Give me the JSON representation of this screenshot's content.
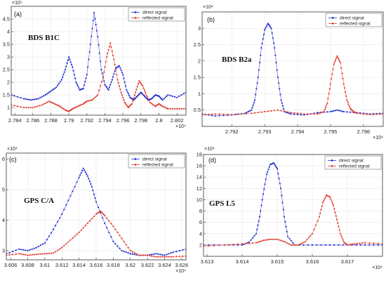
{
  "chart_data": [
    {
      "type": "line",
      "panel_label": "(a)",
      "system_label": "BDS B1C",
      "x_exponent": "×10⁴",
      "y_exponent": "×10⁵",
      "xlim": [
        27836,
        28030
      ],
      "ylim": [
        0.7,
        5.0
      ],
      "xticks": [
        27840,
        27860,
        27880,
        27900,
        27920,
        27940,
        27960,
        27980,
        28000,
        28020
      ],
      "xtick_labels": [
        "2.784",
        "2.786",
        "2.788",
        "2.79",
        "2.792",
        "2.794",
        "2.796",
        "2.798",
        "2.8",
        "2.802"
      ],
      "yticks": [
        1,
        1.5,
        2,
        2.5,
        3,
        3.5,
        4,
        4.5
      ],
      "ytick_labels": [
        "1",
        "1.5",
        "2",
        "2.5",
        "3",
        "3.5",
        "4",
        "4.5"
      ],
      "legend": [
        "direct signal",
        "reflected signal"
      ],
      "series": [
        {
          "name": "direct signal",
          "color": "#1f2fd0",
          "x": [
            27836,
            27850,
            27858,
            27866,
            27874,
            27880,
            27886,
            27892,
            27896,
            27900,
            27904,
            27908,
            27912,
            27916,
            27920,
            27924,
            27928,
            27932,
            27936,
            27940,
            27944,
            27948,
            27952,
            27956,
            27960,
            27964,
            27968,
            27972,
            27976,
            27980,
            27984,
            27988,
            27992,
            27996,
            28000,
            28004,
            28010,
            28020,
            28030
          ],
          "y": [
            1.5,
            1.35,
            1.3,
            1.35,
            1.5,
            1.65,
            1.8,
            2.1,
            2.5,
            3.0,
            2.6,
            2.0,
            1.7,
            1.75,
            2.3,
            3.5,
            4.75,
            3.8,
            2.5,
            1.9,
            1.7,
            2.1,
            2.55,
            2.65,
            2.3,
            1.7,
            1.4,
            1.3,
            1.45,
            1.6,
            1.45,
            1.3,
            1.35,
            1.5,
            1.45,
            1.3,
            1.5,
            1.4,
            1.6
          ]
        },
        {
          "name": "reflected signal",
          "color": "#e03c31",
          "x": [
            27836,
            27850,
            27860,
            27870,
            27878,
            27884,
            27890,
            27896,
            27900,
            27904,
            27910,
            27916,
            27920,
            27926,
            27932,
            27938,
            27942,
            27946,
            27950,
            27954,
            27958,
            27962,
            27966,
            27970,
            27974,
            27978,
            27982,
            27986,
            27990,
            27996,
            28000,
            28004,
            28010,
            28020,
            28030
          ],
          "y": [
            1.1,
            1.0,
            1.0,
            1.1,
            1.25,
            1.15,
            1.05,
            0.9,
            0.85,
            0.95,
            1.05,
            1.15,
            1.25,
            1.3,
            1.5,
            2.2,
            3.0,
            3.55,
            2.9,
            2.1,
            1.6,
            1.2,
            1.0,
            1.15,
            1.6,
            2.05,
            1.85,
            1.5,
            1.2,
            1.05,
            1.15,
            1.05,
            0.95,
            0.95,
            0.95
          ]
        }
      ]
    },
    {
      "type": "line",
      "panel_label": "(b)",
      "system_label": "BDS B2a",
      "x_exponent": "×10⁴",
      "y_exponent": "×10⁴",
      "xlim": [
        27911,
        27966
      ],
      "ylim": [
        0,
        3.5
      ],
      "xticks": [
        27920,
        27930,
        27940,
        27950,
        27960
      ],
      "xtick_labels": [
        "2.792",
        "2.793",
        "2.794",
        "2.795",
        "2.796"
      ],
      "yticks": [
        0.5,
        1,
        1.5,
        2,
        2.5,
        3
      ],
      "ytick_labels": [
        "0.5",
        "1",
        "1.5",
        "2",
        "2.5",
        "3"
      ],
      "legend": [
        "direct signal",
        "reflected signal"
      ],
      "series": [
        {
          "name": "direct signal",
          "color": "#1f2fd0",
          "x": [
            27911,
            27915,
            27920,
            27924,
            27926,
            27927,
            27928,
            27929,
            27930,
            27931,
            27932,
            27933,
            27934,
            27935,
            27936,
            27938,
            27942,
            27946,
            27950,
            27952,
            27954,
            27958,
            27962,
            27966
          ],
          "y": [
            0.38,
            0.32,
            0.35,
            0.4,
            0.5,
            0.8,
            1.5,
            2.4,
            2.95,
            3.15,
            3.0,
            2.4,
            1.5,
            0.8,
            0.45,
            0.38,
            0.35,
            0.42,
            0.45,
            0.5,
            0.45,
            0.42,
            0.38,
            0.4
          ]
        },
        {
          "name": "reflected signal",
          "color": "#e03c31",
          "x": [
            27911,
            27915,
            27920,
            27926,
            27930,
            27934,
            27938,
            27942,
            27946,
            27948,
            27949,
            27950,
            27951,
            27952,
            27953,
            27954,
            27955,
            27956,
            27957,
            27958,
            27962,
            27966
          ],
          "y": [
            0.35,
            0.38,
            0.36,
            0.4,
            0.45,
            0.5,
            0.42,
            0.38,
            0.38,
            0.45,
            0.7,
            1.3,
            1.9,
            2.15,
            1.95,
            1.3,
            0.8,
            0.55,
            0.45,
            0.4,
            0.36,
            0.38
          ]
        }
      ]
    },
    {
      "type": "line",
      "panel_label": "(c)",
      "system_label": "GPS C/A",
      "x_exponent": "×10⁴",
      "y_exponent": "×10⁴",
      "xlim": [
        36055,
        36265
      ],
      "ylim": [
        2.7,
        6.2
      ],
      "xticks": [
        36060,
        36080,
        36100,
        36120,
        36140,
        36160,
        36180,
        36200,
        36220,
        36240,
        36260
      ],
      "xtick_labels": [
        "3.606",
        "3.608",
        "3.61",
        "3.612",
        "3.614",
        "3.616",
        "3.618",
        "3.62",
        "3.622",
        "3.624",
        "3.626"
      ],
      "yticks": [
        3,
        4,
        5,
        6
      ],
      "ytick_labels": [
        "3",
        "4",
        "5",
        "6"
      ],
      "legend": [
        "direct signal",
        "reflected signal"
      ],
      "series": [
        {
          "name": "direct signal",
          "color": "#1f2fd0",
          "x": [
            36055,
            36070,
            36080,
            36090,
            36100,
            36110,
            36120,
            36130,
            36140,
            36145,
            36150,
            36155,
            36160,
            36170,
            36180,
            36190,
            36200,
            36210,
            36220,
            36230,
            36240,
            36250,
            36265
          ],
          "y": [
            2.9,
            3.05,
            3.0,
            3.1,
            3.25,
            3.7,
            4.2,
            4.8,
            5.4,
            5.7,
            5.45,
            5.1,
            4.6,
            3.9,
            3.3,
            3.0,
            2.9,
            2.85,
            2.85,
            2.9,
            2.85,
            2.95,
            3.05
          ]
        },
        {
          "name": "reflected signal",
          "color": "#e03c31",
          "x": [
            36055,
            36070,
            36080,
            36090,
            36100,
            36110,
            36120,
            36130,
            36140,
            36150,
            36160,
            36165,
            36170,
            36180,
            36190,
            36200,
            36210,
            36220,
            36230,
            36240,
            36250,
            36265
          ],
          "y": [
            2.85,
            2.9,
            2.85,
            2.88,
            2.9,
            2.92,
            3.1,
            3.35,
            3.6,
            3.9,
            4.2,
            4.3,
            4.15,
            3.8,
            3.4,
            3.0,
            2.85,
            2.85,
            2.8,
            2.8,
            2.8,
            2.82
          ]
        }
      ]
    },
    {
      "type": "line",
      "panel_label": "(d)",
      "system_label": "GPS L5",
      "x_exponent": "×10⁴",
      "y_exponent": "×10⁴",
      "xlim": [
        36129,
        36180
      ],
      "ylim": [
        0,
        18
      ],
      "xticks": [
        36130,
        36140,
        36150,
        36160,
        36170
      ],
      "xtick_labels": [
        "3.613",
        "3.614",
        "3.615",
        "3.616",
        "3.617"
      ],
      "yticks": [
        2,
        4,
        6,
        8,
        10,
        12,
        14,
        16,
        18
      ],
      "ytick_labels": [
        "2",
        "4",
        "6",
        "8",
        "10",
        "12",
        "14",
        "16",
        "18"
      ],
      "legend": [
        "direct signal",
        "reflected signal"
      ],
      "series": [
        {
          "name": "direct signal",
          "color": "#1f2fd0",
          "x": [
            36129,
            36135,
            36140,
            36142,
            36144,
            36145,
            36146,
            36147,
            36148,
            36149,
            36150,
            36151,
            36152,
            36153,
            36155,
            36160,
            36165,
            36170,
            36175,
            36180
          ],
          "y": [
            2,
            2,
            2,
            2.5,
            4,
            7,
            11,
            14.5,
            16.2,
            16.5,
            15.5,
            12,
            7,
            3.5,
            2,
            2,
            2,
            2,
            2,
            2
          ]
        },
        {
          "name": "reflected signal",
          "color": "#e03c31",
          "x": [
            36129,
            36135,
            36140,
            36144,
            36146,
            36148,
            36150,
            36152,
            36154,
            36156,
            36158,
            36160,
            36162,
            36163,
            36164,
            36165,
            36166,
            36167,
            36168,
            36169,
            36170,
            36172,
            36175,
            36180
          ],
          "y": [
            1.8,
            2,
            2.2,
            2.4,
            2.8,
            3.0,
            3.0,
            2.6,
            2.0,
            2.0,
            2.6,
            4.0,
            7.0,
            9.5,
            10.8,
            10.5,
            9.0,
            6.5,
            4.0,
            2.5,
            2.0,
            2.2,
            2.4,
            2.2
          ]
        }
      ]
    }
  ]
}
